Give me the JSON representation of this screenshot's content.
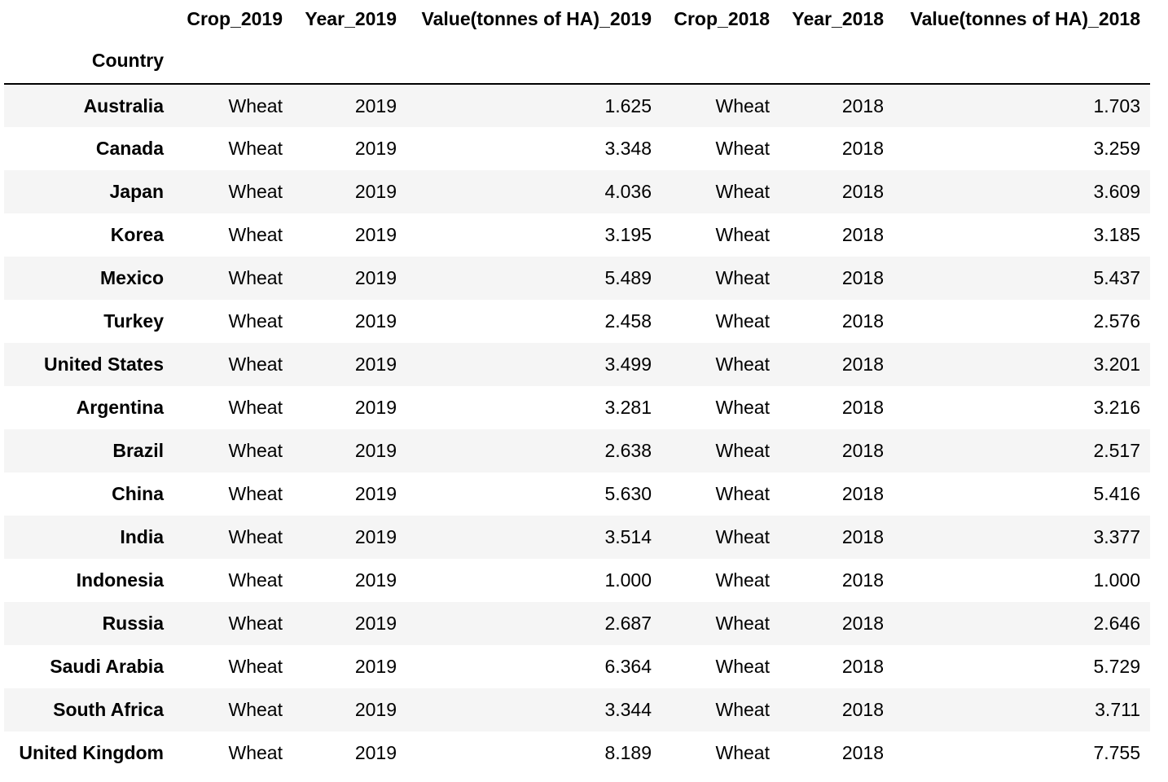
{
  "table": {
    "columns": [
      "Crop_2019",
      "Year_2019",
      "Value(tonnes of HA)_2019",
      "Crop_2018",
      "Year_2018",
      "Value(tonnes of HA)_2018"
    ],
    "index_name": "Country",
    "rows": [
      [
        "Australia",
        "Wheat",
        "2019",
        "1.625",
        "Wheat",
        "2018",
        "1.703"
      ],
      [
        "Canada",
        "Wheat",
        "2019",
        "3.348",
        "Wheat",
        "2018",
        "3.259"
      ],
      [
        "Japan",
        "Wheat",
        "2019",
        "4.036",
        "Wheat",
        "2018",
        "3.609"
      ],
      [
        "Korea",
        "Wheat",
        "2019",
        "3.195",
        "Wheat",
        "2018",
        "3.185"
      ],
      [
        "Mexico",
        "Wheat",
        "2019",
        "5.489",
        "Wheat",
        "2018",
        "5.437"
      ],
      [
        "Turkey",
        "Wheat",
        "2019",
        "2.458",
        "Wheat",
        "2018",
        "2.576"
      ],
      [
        "United States",
        "Wheat",
        "2019",
        "3.499",
        "Wheat",
        "2018",
        "3.201"
      ],
      [
        "Argentina",
        "Wheat",
        "2019",
        "3.281",
        "Wheat",
        "2018",
        "3.216"
      ],
      [
        "Brazil",
        "Wheat",
        "2019",
        "2.638",
        "Wheat",
        "2018",
        "2.517"
      ],
      [
        "China",
        "Wheat",
        "2019",
        "5.630",
        "Wheat",
        "2018",
        "5.416"
      ],
      [
        "India",
        "Wheat",
        "2019",
        "3.514",
        "Wheat",
        "2018",
        "3.377"
      ],
      [
        "Indonesia",
        "Wheat",
        "2019",
        "1.000",
        "Wheat",
        "2018",
        "1.000"
      ],
      [
        "Russia",
        "Wheat",
        "2019",
        "2.687",
        "Wheat",
        "2018",
        "2.646"
      ],
      [
        "Saudi Arabia",
        "Wheat",
        "2019",
        "6.364",
        "Wheat",
        "2018",
        "5.729"
      ],
      [
        "South Africa",
        "Wheat",
        "2019",
        "3.344",
        "Wheat",
        "2018",
        "3.711"
      ],
      [
        "United Kingdom",
        "Wheat",
        "2019",
        "8.189",
        "Wheat",
        "2018",
        "7.755"
      ]
    ]
  },
  "colors": {
    "stripe": "#f5f5f5",
    "background": "#ffffff",
    "text": "#000000",
    "header_rule": "#000000"
  }
}
